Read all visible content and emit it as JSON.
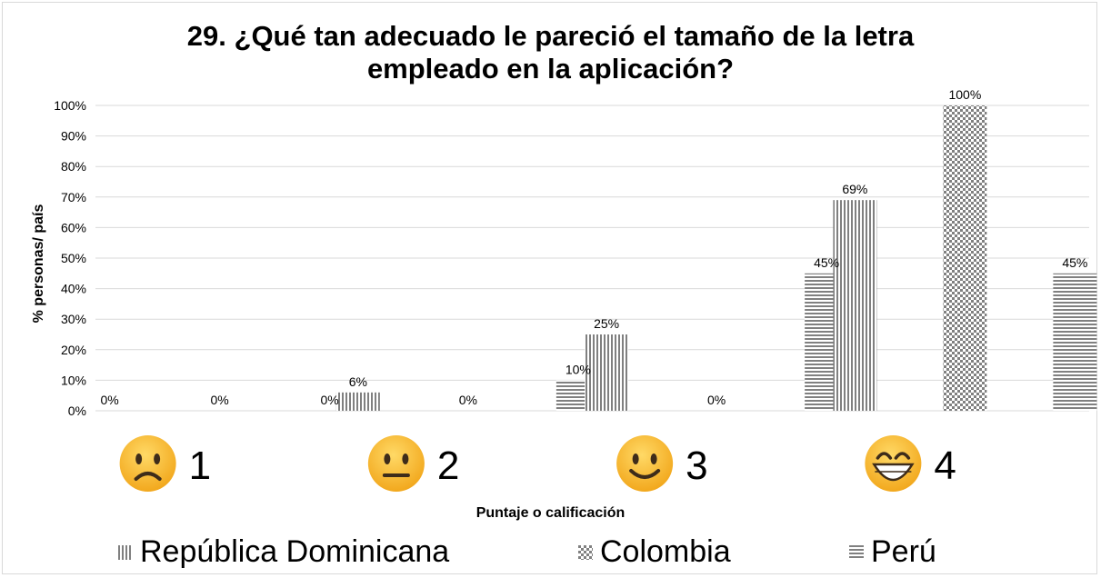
{
  "chart_data": {
    "type": "bar",
    "title_line1": "29. ¿Qué tan adecuado le pareció el tamaño de la letra",
    "title_line2": "empleado en la aplicación?",
    "ylabel": "% personas/ país",
    "xlabel": "Puntaje o calificación",
    "ylim": [
      0,
      100
    ],
    "yticks": [
      "0%",
      "10%",
      "20%",
      "30%",
      "40%",
      "50%",
      "60%",
      "70%",
      "80%",
      "90%",
      "100%"
    ],
    "categories": [
      "1",
      "2",
      "3",
      "4"
    ],
    "category_icons": [
      "frowning-face-icon",
      "neutral-face-icon",
      "slightly-smiling-face-icon",
      "grinning-face-icon"
    ],
    "series": [
      {
        "name": "República Dominicana",
        "pattern": "vertical-lines",
        "values": [
          0,
          6,
          25,
          69
        ],
        "labels": [
          "0%",
          "6%",
          "25%",
          "69%"
        ]
      },
      {
        "name": "Colombia",
        "pattern": "checkerboard",
        "values": [
          0,
          0,
          0,
          100
        ],
        "labels": [
          "0%",
          "0%",
          "0%",
          "100%"
        ]
      },
      {
        "name": "Perú",
        "pattern": "horizontal-lines",
        "values": [
          0,
          10,
          45,
          45
        ],
        "labels": [
          "0%",
          "10%",
          "45%",
          "45%"
        ]
      }
    ],
    "grid": true,
    "legend_position": "bottom",
    "colors": {
      "pattern": "#808080",
      "grid": "#d9d9d9",
      "face": "#f7b733"
    }
  }
}
